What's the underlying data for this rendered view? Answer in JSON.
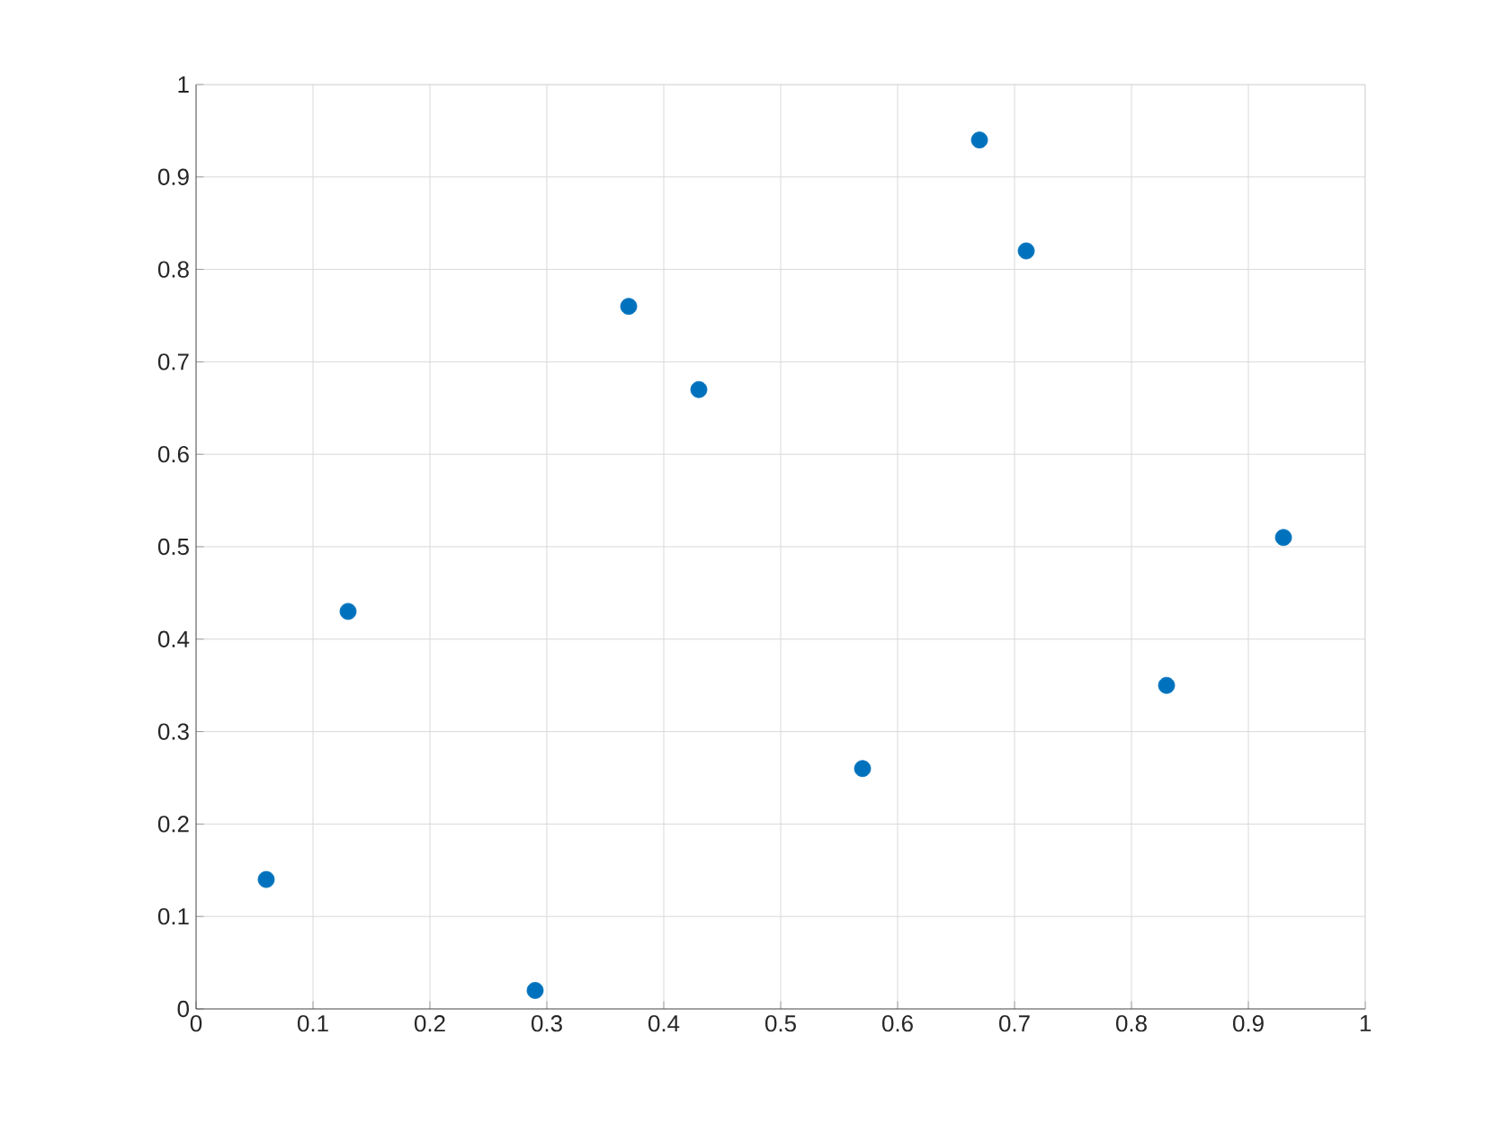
{
  "chart_data": {
    "type": "scatter",
    "x": [
      0.06,
      0.13,
      0.29,
      0.37,
      0.43,
      0.57,
      0.67,
      0.71,
      0.83,
      0.93
    ],
    "values": [
      0.14,
      0.43,
      0.02,
      0.76,
      0.67,
      0.26,
      0.94,
      0.82,
      0.35,
      0.51
    ],
    "color": "#0072bd",
    "marker": "circle",
    "grid": true,
    "xlim": [
      0,
      1
    ],
    "ylim": [
      0,
      1
    ],
    "xticks": [
      0,
      0.1,
      0.2,
      0.3,
      0.4,
      0.5,
      0.6,
      0.7,
      0.8,
      0.9,
      1
    ],
    "yticks": [
      0,
      0.1,
      0.2,
      0.3,
      0.4,
      0.5,
      0.6,
      0.7,
      0.8,
      0.9,
      1
    ]
  }
}
